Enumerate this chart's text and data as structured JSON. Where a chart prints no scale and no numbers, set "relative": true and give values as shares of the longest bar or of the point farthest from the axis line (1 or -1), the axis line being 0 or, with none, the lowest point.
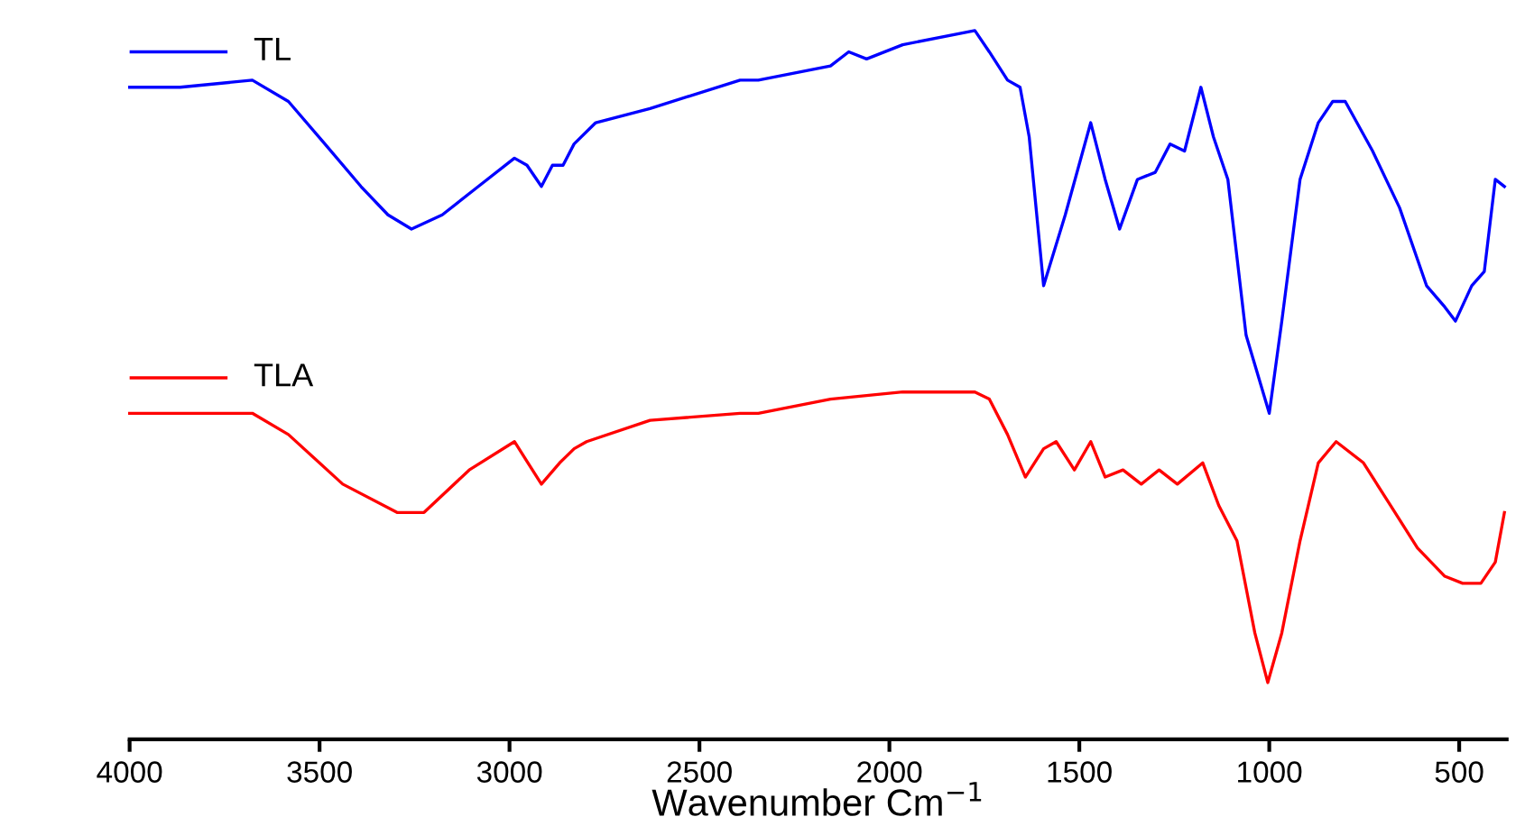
{
  "chart_data": {
    "type": "line",
    "relative": true,
    "xlabel": "Wavenumber Cm$^{−1}$",
    "xlim": [
      4000,
      375
    ],
    "xticks": [
      4000,
      3500,
      3000,
      2500,
      2000,
      1500,
      1000,
      500
    ],
    "legend": "top left",
    "tick_labels": "x",
    "grid": false,
    "series": [
      {
        "name": "TL",
        "color": "#0000ff",
        "x": [
          4000,
          3867,
          3677,
          3582,
          3486,
          3391,
          3320,
          3258,
          3177,
          3082,
          2987,
          2954,
          2916,
          2887,
          2859,
          2830,
          2773,
          2630,
          2393,
          2345,
          2155,
          2107,
          2060,
          1965,
          1775,
          1737,
          1689,
          1656,
          1632,
          1594,
          1537,
          1470,
          1432,
          1394,
          1347,
          1300,
          1261,
          1223,
          1180,
          1147,
          1109,
          1061,
          1000,
          967,
          919,
          871,
          833,
          800,
          728,
          657,
          586,
          538,
          510,
          467,
          434,
          405,
          381
        ],
        "values": [
          0.92,
          0.92,
          0.93,
          0.9,
          0.84,
          0.78,
          0.74,
          0.72,
          0.74,
          0.78,
          0.82,
          0.81,
          0.78,
          0.81,
          0.81,
          0.84,
          0.87,
          0.89,
          0.93,
          0.93,
          0.95,
          0.97,
          0.96,
          0.98,
          1.0,
          0.97,
          0.93,
          0.92,
          0.85,
          0.64,
          0.74,
          0.87,
          0.79,
          0.72,
          0.79,
          0.8,
          0.84,
          0.83,
          0.92,
          0.85,
          0.79,
          0.57,
          0.46,
          0.59,
          0.79,
          0.87,
          0.9,
          0.9,
          0.83,
          0.75,
          0.64,
          0.61,
          0.59,
          0.64,
          0.66,
          0.79,
          0.78
        ]
      },
      {
        "name": "TLA",
        "color": "#ff0000",
        "x": [
          4000,
          3677,
          3582,
          3439,
          3296,
          3225,
          3106,
          2987,
          2916,
          2868,
          2830,
          2797,
          2630,
          2393,
          2345,
          2155,
          1965,
          1775,
          1737,
          1689,
          1642,
          1594,
          1561,
          1513,
          1470,
          1432,
          1385,
          1337,
          1290,
          1242,
          1175,
          1133,
          1085,
          1038,
          1004,
          967,
          919,
          871,
          824,
          752,
          681,
          610,
          538,
          491,
          443,
          405,
          381
        ],
        "values": [
          0.46,
          0.46,
          0.43,
          0.36,
          0.32,
          0.32,
          0.38,
          0.42,
          0.36,
          0.39,
          0.41,
          0.42,
          0.45,
          0.46,
          0.46,
          0.48,
          0.49,
          0.49,
          0.48,
          0.43,
          0.37,
          0.41,
          0.42,
          0.38,
          0.42,
          0.37,
          0.38,
          0.36,
          0.38,
          0.36,
          0.39,
          0.33,
          0.28,
          0.15,
          0.08,
          0.15,
          0.28,
          0.39,
          0.42,
          0.39,
          0.33,
          0.27,
          0.23,
          0.22,
          0.22,
          0.25,
          0.32
        ]
      }
    ]
  }
}
